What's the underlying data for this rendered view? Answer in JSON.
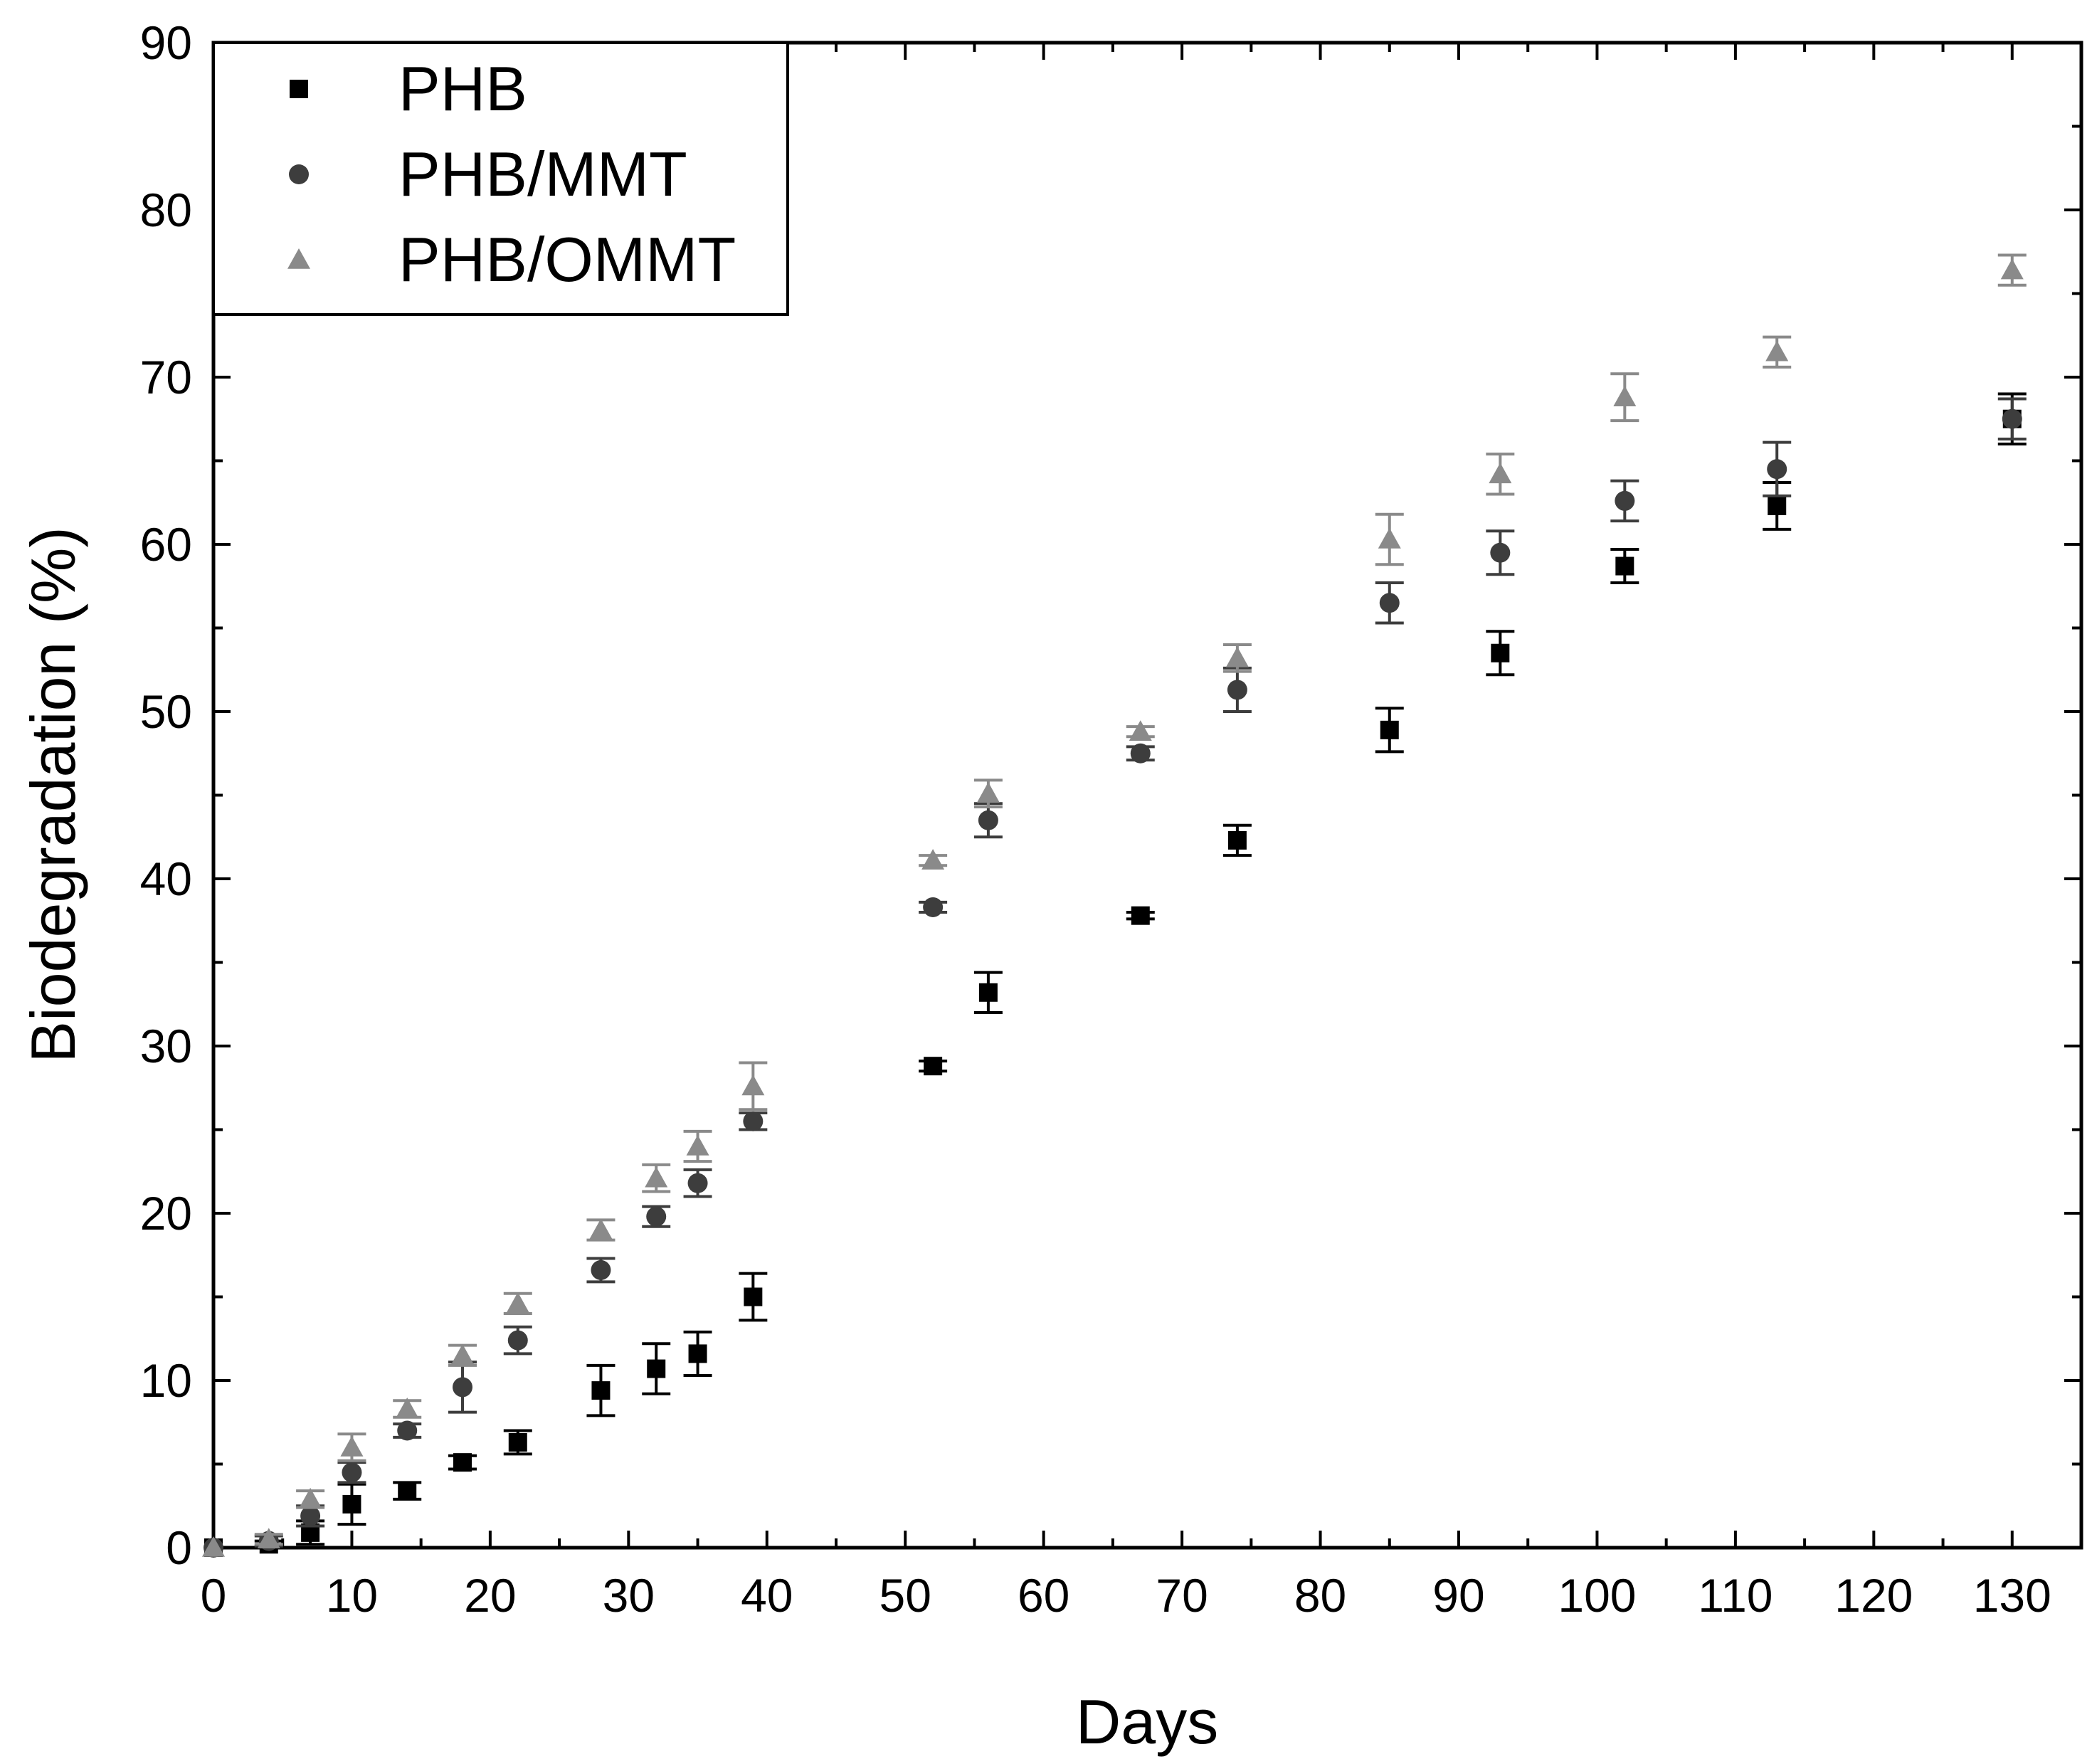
{
  "chart_data": {
    "type": "scatter",
    "title": "",
    "xlabel": "Days",
    "ylabel": "Biodegradation (%)",
    "xlim": [
      0,
      135
    ],
    "ylim": [
      0,
      90
    ],
    "xticks": [
      0,
      10,
      20,
      30,
      40,
      50,
      60,
      70,
      80,
      90,
      100,
      110,
      120,
      130
    ],
    "yticks": [
      0,
      10,
      20,
      30,
      40,
      50,
      60,
      70,
      80,
      90
    ],
    "legend_position": "top-left",
    "series": [
      {
        "name": "PHB",
        "marker": "square",
        "color": "#000000",
        "x": [
          0,
          4,
          7,
          10,
          14,
          18,
          22,
          28,
          32,
          35,
          39,
          52,
          56,
          67,
          74,
          85,
          93,
          102,
          113,
          130
        ],
        "y": [
          0,
          0.2,
          0.9,
          2.6,
          3.4,
          5.1,
          6.3,
          9.4,
          10.7,
          11.6,
          15.0,
          28.8,
          33.2,
          37.8,
          42.3,
          48.9,
          53.5,
          58.7,
          62.3,
          67.5
        ],
        "err": [
          0,
          0.2,
          0.7,
          1.2,
          0.5,
          0.4,
          0.7,
          1.5,
          1.5,
          1.3,
          1.4,
          0.3,
          1.2,
          0.2,
          0.9,
          1.3,
          1.3,
          1.0,
          1.4,
          1.5
        ]
      },
      {
        "name": "PHB/MMT",
        "marker": "circle",
        "color": "#3d3d3d",
        "x": [
          0,
          4,
          7,
          10,
          14,
          18,
          22,
          28,
          32,
          35,
          39,
          52,
          56,
          67,
          74,
          85,
          93,
          102,
          113,
          130
        ],
        "y": [
          0,
          0.4,
          1.9,
          4.5,
          7.0,
          9.6,
          12.4,
          16.6,
          19.8,
          21.8,
          25.5,
          38.3,
          43.5,
          47.5,
          51.3,
          56.5,
          59.5,
          62.6,
          64.5,
          67.5
        ],
        "err": [
          0,
          0.3,
          0.6,
          0.6,
          0.4,
          1.5,
          0.8,
          0.7,
          0.6,
          0.8,
          0.5,
          0.3,
          1.0,
          0.4,
          1.3,
          1.2,
          1.3,
          1.2,
          1.6,
          1.2
        ]
      },
      {
        "name": "PHB/OMMT",
        "marker": "triangle",
        "color": "#8a8a8a",
        "x": [
          0,
          4,
          7,
          10,
          14,
          18,
          22,
          28,
          32,
          35,
          39,
          52,
          56,
          67,
          74,
          85,
          93,
          102,
          113,
          130
        ],
        "y": [
          0,
          0.5,
          2.9,
          6.0,
          8.3,
          11.5,
          14.6,
          19.0,
          22.1,
          24.0,
          27.6,
          41.1,
          45.1,
          48.8,
          53.2,
          60.3,
          64.2,
          68.8,
          71.5,
          76.4
        ],
        "err": [
          0,
          0.3,
          0.5,
          0.8,
          0.5,
          0.6,
          0.6,
          0.6,
          0.8,
          0.9,
          1.4,
          0.3,
          0.8,
          0.3,
          0.8,
          1.5,
          1.2,
          1.4,
          0.9,
          0.9
        ]
      }
    ]
  }
}
